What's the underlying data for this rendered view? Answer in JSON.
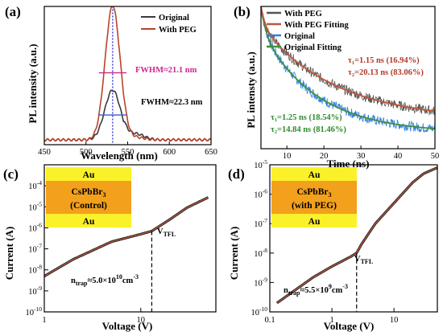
{
  "chart_data": [
    {
      "panel": "(a)",
      "type": "line",
      "xlabel": "Wavelength (nm)",
      "ylabel": "PL intensity (a.u.)",
      "xlim": [
        450,
        650
      ],
      "xticks": [
        "450",
        "500",
        "550",
        "600",
        "650"
      ],
      "series": [
        {
          "name": "Original",
          "color": "#3a3a3a",
          "peak_x": 532,
          "peak_height": 0.36,
          "fwhm": 22.3
        },
        {
          "name": "With PEG",
          "color": "#b8442c",
          "peak_x": 532,
          "peak_height": 0.97,
          "fwhm": 21.1
        }
      ],
      "annotations": {
        "fwhm_peg": "FWHM≈21.1 nm",
        "fwhm_orig": "FWHM≈22.3 nm"
      },
      "colors": {
        "fwhm_peg": "#cc2a8a",
        "fwhm_orig": "#3b5bc8",
        "peak_line": "#1a1acc"
      }
    },
    {
      "panel": "(b)",
      "type": "line",
      "xlabel": "Time (ns)",
      "ylabel": "PL intensty (a.u.)",
      "xlim": [
        3,
        50
      ],
      "xticks": [
        "10",
        "20",
        "30",
        "40",
        "50"
      ],
      "legend_position": "top-left",
      "series": [
        {
          "name": "With PEG",
          "color": "#555555",
          "tau1": 1.15,
          "a1": 16.94,
          "tau2": 20.13,
          "a2": 83.06
        },
        {
          "name": "With PEG Fitting",
          "color": "#c0563a"
        },
        {
          "name": "Original",
          "color": "#2f7fe0",
          "tau1": 1.25,
          "a1": 18.54,
          "tau2": 14.84,
          "a2": 81.46
        },
        {
          "name": "Original Fitting",
          "color": "#3f8f3f"
        }
      ],
      "annotations": {
        "peg_tau1": "τ₁=1.15 ns (16.94%)",
        "peg_tau2": "τ₂=20.13 ns (83.06%)",
        "orig_tau1": "τ₁=1.25 ns (18.54%)",
        "orig_tau2": "τ₂=14.84 ns (81.46%)"
      },
      "colors": {
        "peg_text": "#b03a2a",
        "orig_text": "#2e8b2e"
      }
    },
    {
      "panel": "(c)",
      "type": "line",
      "scale": "log-log",
      "xlabel": "Voltage (V)",
      "ylabel": "Current (A)",
      "xlim": [
        1,
        60
      ],
      "ylim": [
        1e-10,
        0.001
      ],
      "xticks": [
        "1",
        "10"
      ],
      "yticks": [
        "10-10",
        "10-9",
        "10-8",
        "10-7",
        "10-6",
        "10-5",
        "10-4"
      ],
      "vtfl_label": "V",
      "vtfl_sub": "TFL",
      "vtfl_value": 13,
      "ntrap": "n",
      "ntrap_sub": "trap",
      "ntrap_value": "≈5.0×10",
      "ntrap_exp": "10",
      "ntrap_unit": "cm",
      "ntrap_unit_exp": "-3",
      "layers": [
        "Au",
        "CsPbBr",
        "3",
        "(Control)",
        "Au"
      ],
      "points": [
        [
          1,
          5e-09
        ],
        [
          2,
          3.2e-08
        ],
        [
          5,
          2.2e-07
        ],
        [
          10,
          5e-07
        ],
        [
          13,
          7e-07
        ],
        [
          20,
          2.5e-06
        ],
        [
          30,
          9e-06
        ],
        [
          50,
          2.8e-05
        ]
      ]
    },
    {
      "panel": "(d)",
      "type": "line",
      "scale": "log-log",
      "xlabel": "Voltage (V)",
      "ylabel": "Current (A)",
      "xlim": [
        0.1,
        50
      ],
      "ylim": [
        1e-10,
        1e-05
      ],
      "xticks": [
        "0.1",
        "1",
        "10"
      ],
      "yticks": [
        "10-10",
        "10-9",
        "10-8",
        "10-7",
        "10-6",
        "10-5"
      ],
      "vtfl_label": "V",
      "vtfl_sub": "TFL",
      "vtfl_value": 2.5,
      "ntrap": "n",
      "ntrap_sub": "trap",
      "ntrap_value": "≈5.5×10",
      "ntrap_exp": "9",
      "ntrap_unit": "cm",
      "ntrap_unit_exp": "-3",
      "layers": [
        "Au",
        "CsPbBr",
        "3",
        "(with PEG)",
        "Au"
      ],
      "points": [
        [
          0.13,
          2e-10
        ],
        [
          0.5,
          1.5e-09
        ],
        [
          1,
          3.5e-09
        ],
        [
          2,
          7.5e-09
        ],
        [
          2.5,
          1e-08
        ],
        [
          3,
          2e-08
        ],
        [
          5,
          1e-07
        ],
        [
          10,
          5e-07
        ],
        [
          20,
          2.5e-06
        ],
        [
          30,
          5e-06
        ],
        [
          50,
          8e-06
        ]
      ]
    }
  ],
  "panel_labels": [
    "(a)",
    "(b)",
    "(c)",
    "(d)"
  ]
}
